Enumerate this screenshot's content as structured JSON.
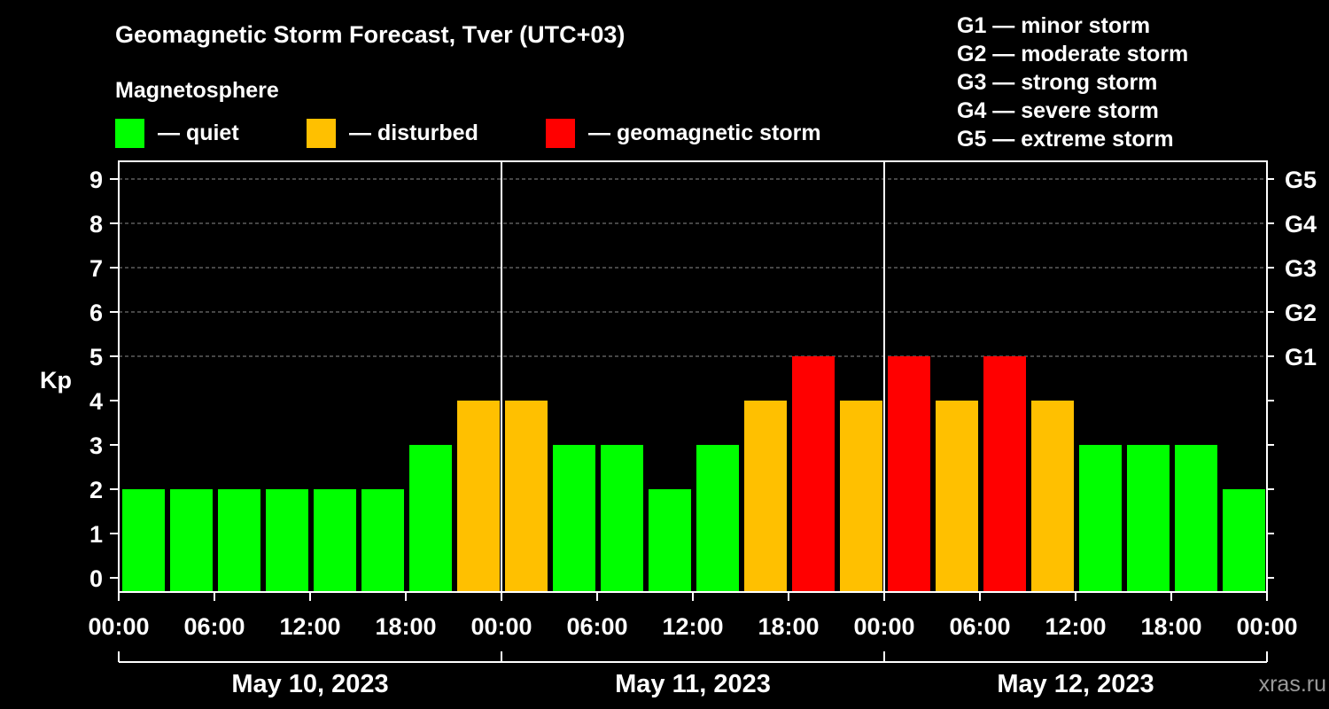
{
  "chart_data": {
    "type": "bar",
    "title": "Geomagnetic Storm Forecast, Tver (UTC+03)",
    "subtitle": "Magnetosphere",
    "ylabel": "Kp",
    "ylim": [
      0,
      9
    ],
    "y_ticks": [
      "0",
      "1",
      "2",
      "3",
      "4",
      "5",
      "6",
      "7",
      "8",
      "9"
    ],
    "g_scale": [
      {
        "kp": 5,
        "label": "G1"
      },
      {
        "kp": 6,
        "label": "G2"
      },
      {
        "kp": 7,
        "label": "G3"
      },
      {
        "kp": 8,
        "label": "G4"
      },
      {
        "kp": 9,
        "label": "G5"
      }
    ],
    "x_ticks": [
      "00:00",
      "06:00",
      "12:00",
      "18:00",
      "00:00",
      "06:00",
      "12:00",
      "18:00",
      "00:00",
      "06:00",
      "12:00",
      "18:00",
      "00:00"
    ],
    "days": [
      "May 10, 2023",
      "May 11, 2023",
      "May 12, 2023"
    ],
    "interval_hours": 3,
    "values": [
      2,
      2,
      2,
      2,
      2,
      2,
      3,
      4,
      4,
      3,
      3,
      2,
      3,
      4,
      5,
      4,
      5,
      4,
      5,
      4,
      3,
      3,
      3,
      2
    ],
    "status_legend": [
      {
        "label": "— quiet",
        "color": "#00ff00"
      },
      {
        "label": "— disturbed",
        "color": "#ffc000"
      },
      {
        "label": "— geomagnetic storm",
        "color": "#ff0000"
      }
    ],
    "scale_legend": [
      "G1 — minor storm",
      "G2 — moderate storm",
      "G3 — strong storm",
      "G4 — severe storm",
      "G5 — extreme storm"
    ],
    "grid": true,
    "legend_position": "top"
  },
  "watermark": "xras.ru"
}
